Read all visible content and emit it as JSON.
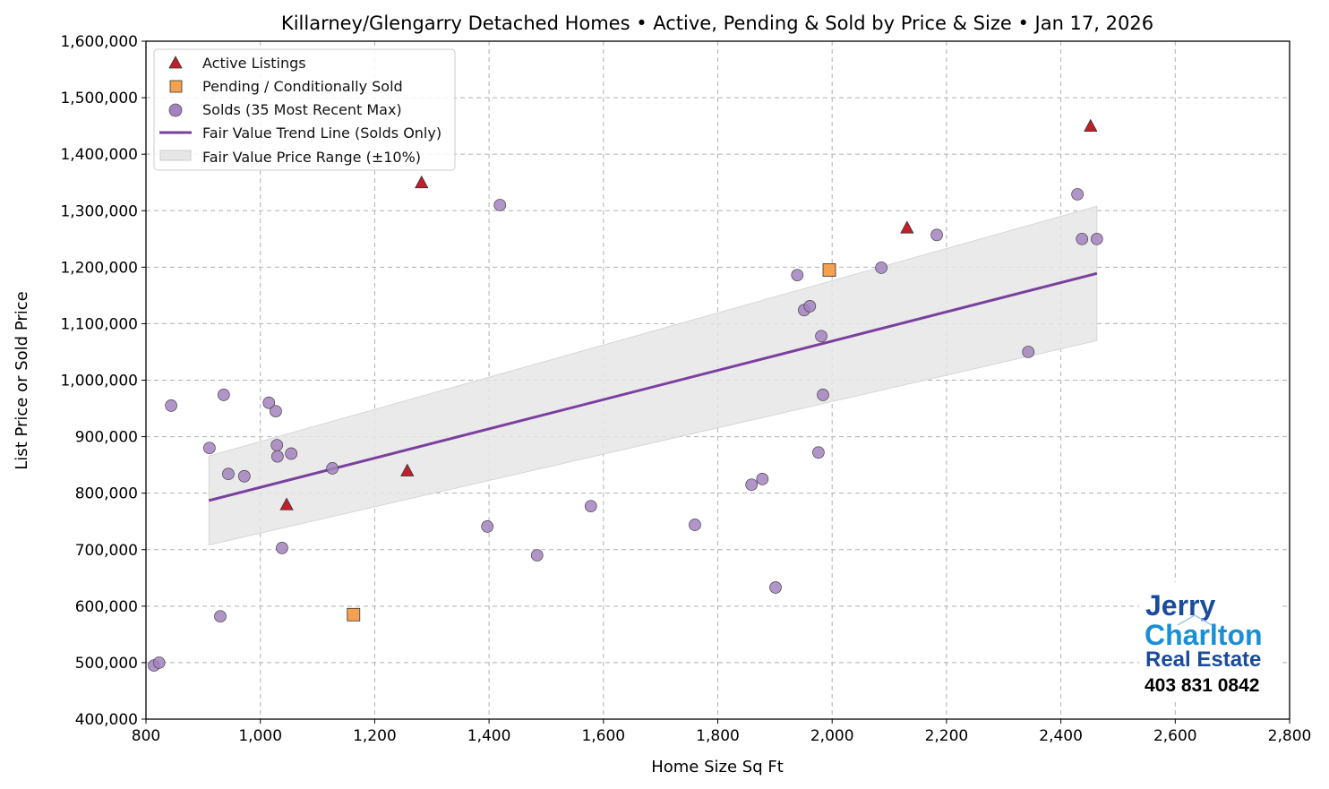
{
  "chart_data": {
    "type": "scatter",
    "title": "Killarney/Glengarry Detached Homes • Active, Pending & Sold by Price & Size • Jan 17, 2026",
    "xlabel": "Home Size Sq Ft",
    "ylabel": "List Price or Sold Price",
    "xlim": [
      800,
      2800
    ],
    "ylim": [
      400000,
      1600000
    ],
    "xticks": [
      800,
      1000,
      1200,
      1400,
      1600,
      1800,
      2000,
      2200,
      2400,
      2600,
      2800
    ],
    "yticks": [
      400000,
      500000,
      600000,
      700000,
      800000,
      900000,
      1000000,
      1100000,
      1200000,
      1300000,
      1400000,
      1500000,
      1600000
    ],
    "grid": true,
    "legend_position": "top-left",
    "series": [
      {
        "name": "Active Listings",
        "marker": "triangle",
        "color": "#c41e2a",
        "points": [
          [
            1282,
            1350000
          ],
          [
            2452,
            1450000
          ],
          [
            2131,
            1270000
          ],
          [
            1257,
            840000
          ],
          [
            1046,
            780000
          ]
        ]
      },
      {
        "name": "Pending / Conditionally Sold",
        "marker": "square",
        "color": "#f7a050",
        "points": [
          [
            1995,
            1195000
          ],
          [
            1163,
            585000
          ]
        ]
      },
      {
        "name": "Solds (35 Most Recent Max)",
        "marker": "circle",
        "color": "#a383c0",
        "points": [
          [
            814,
            495000
          ],
          [
            823,
            500000
          ],
          [
            844,
            955000
          ],
          [
            911,
            880000
          ],
          [
            936,
            974000
          ],
          [
            930,
            582000
          ],
          [
            944,
            834000
          ],
          [
            972,
            830000
          ],
          [
            1015,
            960000
          ],
          [
            1027,
            945000
          ],
          [
            1029,
            885000
          ],
          [
            1030,
            865000
          ],
          [
            1054,
            870000
          ],
          [
            1038,
            703000
          ],
          [
            1126,
            844000
          ],
          [
            1397,
            741000
          ],
          [
            1419,
            1310000
          ],
          [
            1484,
            690000
          ],
          [
            1578,
            777000
          ],
          [
            1760,
            744000
          ],
          [
            1859,
            815000
          ],
          [
            1878,
            825000
          ],
          [
            1901,
            633000
          ],
          [
            1939,
            1186000
          ],
          [
            1951,
            1124000
          ],
          [
            1961,
            1131000
          ],
          [
            1981,
            1078000
          ],
          [
            1984,
            974000
          ],
          [
            1976,
            872000
          ],
          [
            2086,
            1199000
          ],
          [
            2183,
            1257000
          ],
          [
            2343,
            1050000
          ],
          [
            2429,
            1329000
          ],
          [
            2437,
            1250000
          ],
          [
            2463,
            1250000
          ]
        ]
      }
    ],
    "trend_line": {
      "name": "Fair Value Trend Line (Solds Only)",
      "color": "#7b3f9e",
      "start": [
        910,
        787000
      ],
      "end": [
        2463,
        1189000
      ]
    },
    "range_band": {
      "name": "Fair Value Price Range (±10%)",
      "pct": 10,
      "color": "#e6e6e6"
    }
  },
  "logo": {
    "line1": "Jerry",
    "line2": "Charlton",
    "line3": "Real Estate",
    "phone": "403 831 0842",
    "color_dark": "#1a4b9c",
    "color_light": "#1a8fd6"
  }
}
